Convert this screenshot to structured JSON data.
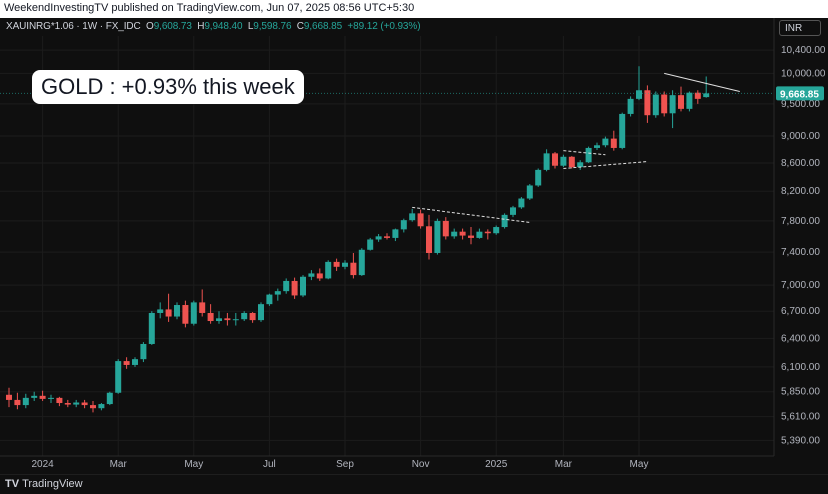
{
  "header": {
    "published": "WeekendInvestingTV published on TradingView.com, Jun 07, 2025 08:56 UTC+5:30"
  },
  "legend": {
    "symbol": "XAUINRG*1.06 · 1W · FX_IDC",
    "o_label": "O",
    "o_value": "9,608.73",
    "h_label": "H",
    "h_value": "9,948.40",
    "l_label": "L",
    "l_value": "9,598.76",
    "c_label": "C",
    "c_value": "9,668.85",
    "change": "+89.12 (+0.93%)"
  },
  "currency_button": "INR",
  "annotation": "GOLD : +0.93% this week",
  "footer": {
    "brand": "TradingView"
  },
  "colors": {
    "up": "#26a69a",
    "down": "#ef5350",
    "background": "#0f0f0f",
    "grid": "#1c1c1c"
  },
  "chart_data": {
    "type": "candlestick",
    "interval": "1W",
    "y_scale": "log",
    "ylim": [
      5250,
      10650
    ],
    "y_ticks": [
      10400,
      10000,
      9500,
      9000,
      8600,
      8200,
      7800,
      7400,
      7000,
      6700,
      6400,
      6100,
      5850,
      5610,
      5390
    ],
    "y_tick_labels": [
      "10,400.00",
      "10,000.00",
      "9,500.00",
      "9,000.00",
      "8,600.00",
      "8,200.00",
      "7,800.00",
      "7,400.00",
      "7,000.00",
      "6,700.00",
      "6,400.00",
      "6,100.00",
      "5,850.00",
      "5,610.00",
      "5,390.00"
    ],
    "x_ticks": [
      {
        "label": "2024",
        "index": 4
      },
      {
        "label": "Mar",
        "index": 13
      },
      {
        "label": "May",
        "index": 22
      },
      {
        "label": "Jul",
        "index": 31
      },
      {
        "label": "Sep",
        "index": 40
      },
      {
        "label": "Nov",
        "index": 49
      },
      {
        "label": "2025",
        "index": 58
      },
      {
        "label": "Mar",
        "index": 66
      },
      {
        "label": "May",
        "index": 75
      }
    ],
    "last_price": 9668.85,
    "last_price_label": "9,668.85",
    "candles": [
      [
        5820,
        5890,
        5700,
        5770
      ],
      [
        5770,
        5840,
        5680,
        5720
      ],
      [
        5720,
        5830,
        5690,
        5790
      ],
      [
        5790,
        5850,
        5760,
        5810
      ],
      [
        5810,
        5860,
        5760,
        5780
      ],
      [
        5780,
        5820,
        5740,
        5790
      ],
      [
        5790,
        5800,
        5710,
        5740
      ],
      [
        5740,
        5770,
        5700,
        5725
      ],
      [
        5725,
        5770,
        5700,
        5745
      ],
      [
        5745,
        5770,
        5690,
        5720
      ],
      [
        5720,
        5760,
        5650,
        5690
      ],
      [
        5690,
        5740,
        5670,
        5730
      ],
      [
        5730,
        5850,
        5720,
        5840
      ],
      [
        5840,
        6180,
        5830,
        6160
      ],
      [
        6160,
        6200,
        6080,
        6120
      ],
      [
        6120,
        6200,
        6100,
        6180
      ],
      [
        6180,
        6360,
        6150,
        6340
      ],
      [
        6340,
        6700,
        6330,
        6680
      ],
      [
        6680,
        6800,
        6620,
        6720
      ],
      [
        6720,
        6900,
        6580,
        6640
      ],
      [
        6640,
        6800,
        6610,
        6770
      ],
      [
        6770,
        6820,
        6520,
        6560
      ],
      [
        6560,
        6820,
        6540,
        6800
      ],
      [
        6800,
        6950,
        6640,
        6680
      ],
      [
        6680,
        6780,
        6560,
        6590
      ],
      [
        6590,
        6700,
        6560,
        6620
      ],
      [
        6620,
        6680,
        6540,
        6600
      ],
      [
        6600,
        6680,
        6540,
        6610
      ],
      [
        6610,
        6700,
        6590,
        6680
      ],
      [
        6680,
        6690,
        6570,
        6600
      ],
      [
        6600,
        6800,
        6580,
        6780
      ],
      [
        6780,
        6900,
        6760,
        6890
      ],
      [
        6890,
        6960,
        6820,
        6930
      ],
      [
        6930,
        7080,
        6900,
        7050
      ],
      [
        7050,
        7090,
        6840,
        6880
      ],
      [
        6880,
        7120,
        6860,
        7100
      ],
      [
        7100,
        7180,
        7060,
        7140
      ],
      [
        7140,
        7200,
        7050,
        7080
      ],
      [
        7080,
        7300,
        7070,
        7280
      ],
      [
        7280,
        7320,
        7170,
        7220
      ],
      [
        7220,
        7300,
        7190,
        7270
      ],
      [
        7270,
        7390,
        7080,
        7120
      ],
      [
        7120,
        7450,
        7110,
        7430
      ],
      [
        7430,
        7580,
        7420,
        7560
      ],
      [
        7560,
        7630,
        7530,
        7600
      ],
      [
        7600,
        7640,
        7560,
        7580
      ],
      [
        7580,
        7700,
        7540,
        7690
      ],
      [
        7690,
        7830,
        7650,
        7810
      ],
      [
        7810,
        7960,
        7790,
        7900
      ],
      [
        7900,
        7950,
        7700,
        7730
      ],
      [
        7730,
        7880,
        7310,
        7390
      ],
      [
        7390,
        7830,
        7370,
        7800
      ],
      [
        7800,
        7850,
        7560,
        7600
      ],
      [
        7600,
        7700,
        7570,
        7660
      ],
      [
        7660,
        7700,
        7560,
        7610
      ],
      [
        7610,
        7720,
        7500,
        7580
      ],
      [
        7580,
        7700,
        7570,
        7660
      ],
      [
        7660,
        7690,
        7560,
        7640
      ],
      [
        7640,
        7740,
        7620,
        7720
      ],
      [
        7720,
        7900,
        7700,
        7880
      ],
      [
        7880,
        8000,
        7850,
        7980
      ],
      [
        7980,
        8120,
        7960,
        8100
      ],
      [
        8100,
        8300,
        8080,
        8280
      ],
      [
        8280,
        8520,
        8260,
        8500
      ],
      [
        8500,
        8800,
        8480,
        8740
      ],
      [
        8740,
        8760,
        8520,
        8560
      ],
      [
        8560,
        8720,
        8540,
        8690
      ],
      [
        8690,
        8700,
        8520,
        8540
      ],
      [
        8540,
        8640,
        8500,
        8610
      ],
      [
        8610,
        8840,
        8600,
        8820
      ],
      [
        8820,
        8900,
        8790,
        8860
      ],
      [
        8860,
        8990,
        8830,
        8960
      ],
      [
        8960,
        9080,
        8780,
        8820
      ],
      [
        8820,
        9360,
        8800,
        9340
      ],
      [
        9340,
        9620,
        9300,
        9580
      ],
      [
        9580,
        10120,
        9560,
        9720
      ],
      [
        9720,
        9800,
        9200,
        9320
      ],
      [
        9320,
        9700,
        9280,
        9650
      ],
      [
        9650,
        9700,
        9300,
        9350
      ],
      [
        9350,
        9720,
        9120,
        9640
      ],
      [
        9640,
        9780,
        9380,
        9420
      ],
      [
        9420,
        9700,
        9380,
        9680
      ],
      [
        9680,
        9720,
        9500,
        9580
      ],
      [
        9608.73,
        9948.4,
        9598.76,
        9668.85
      ]
    ]
  }
}
